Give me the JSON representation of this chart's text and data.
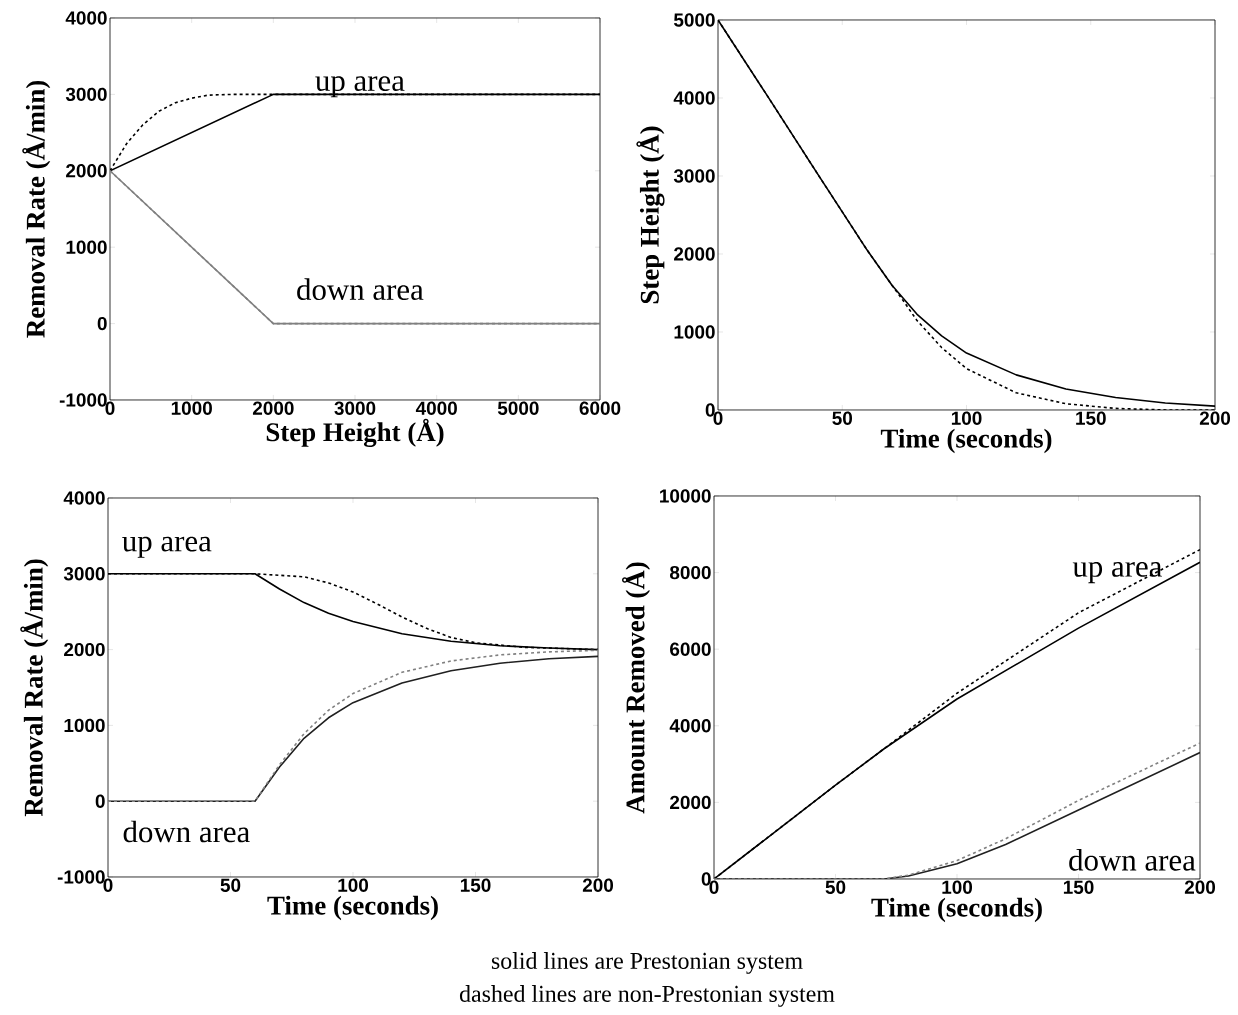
{
  "chart_data": [
    {
      "type": "line",
      "xlabel": "Step Height (Å)",
      "ylabel": "Removal Rate (Å/min)",
      "xlim": [
        0,
        6000
      ],
      "ylim": [
        -1000,
        4000
      ],
      "xticks": [
        0,
        1000,
        2000,
        3000,
        4000,
        5000,
        6000
      ],
      "yticks": [
        -1000,
        0,
        1000,
        2000,
        3000,
        4000
      ],
      "marker": "none",
      "series": [
        {
          "color": "#000000",
          "line_style": "solid",
          "x": [
            0,
            2000,
            6000
          ],
          "values": [
            2000,
            3000,
            3000
          ]
        },
        {
          "color": "#000000",
          "line_style": "dashed",
          "x": [
            0,
            200,
            400,
            600,
            800,
            1000,
            1200,
            1500,
            2000,
            6000
          ],
          "values": [
            2000,
            2350,
            2600,
            2780,
            2890,
            2950,
            2990,
            3000,
            3000,
            3000
          ]
        },
        {
          "color": "#808080",
          "line_style": "solid",
          "x": [
            0,
            2000,
            6000
          ],
          "values": [
            2000,
            0,
            0
          ]
        },
        {
          "color": "#808080",
          "line_style": "dashed",
          "x": [
            0,
            2000,
            6000
          ],
          "values": [
            2000,
            0,
            0
          ]
        }
      ],
      "annotations": [
        "up area",
        "down area"
      ]
    },
    {
      "type": "line",
      "xlabel": "Time (seconds)",
      "ylabel": "Step Height (Å)",
      "xlim": [
        0,
        200
      ],
      "ylim": [
        0,
        5000
      ],
      "xticks": [
        0,
        50,
        100,
        150,
        200
      ],
      "yticks": [
        0,
        1000,
        2000,
        3000,
        4000,
        5000
      ],
      "marker": "none",
      "series": [
        {
          "color": "#000000",
          "line_style": "solid",
          "x": [
            0,
            20,
            40,
            60,
            70,
            80,
            90,
            100,
            120,
            140,
            160,
            180,
            200
          ],
          "values": [
            5000,
            4020,
            3030,
            2050,
            1600,
            1230,
            950,
            730,
            450,
            270,
            160,
            90,
            50
          ]
        },
        {
          "color": "#000000",
          "line_style": "dashed",
          "x": [
            0,
            20,
            40,
            60,
            70,
            75,
            80,
            90,
            100,
            120,
            140,
            160,
            180,
            200
          ],
          "values": [
            5000,
            4020,
            3030,
            2050,
            1600,
            1380,
            1150,
            800,
            530,
            220,
            80,
            20,
            0,
            0
          ]
        }
      ]
    },
    {
      "type": "line",
      "xlabel": "Time (seconds)",
      "ylabel": "Removal Rate (Å/min)",
      "xlim": [
        0,
        200
      ],
      "ylim": [
        -1000,
        4000
      ],
      "xticks": [
        0,
        50,
        100,
        150,
        200
      ],
      "yticks": [
        -1000,
        0,
        1000,
        2000,
        3000,
        4000
      ],
      "marker": "none",
      "series": [
        {
          "color": "#000000",
          "line_style": "solid",
          "x": [
            0,
            60,
            70,
            80,
            90,
            100,
            120,
            140,
            160,
            180,
            200
          ],
          "values": [
            3000,
            3000,
            2800,
            2620,
            2480,
            2370,
            2210,
            2110,
            2050,
            2020,
            2000
          ]
        },
        {
          "color": "#000000",
          "line_style": "dashed",
          "x": [
            0,
            60,
            80,
            90,
            100,
            110,
            120,
            130,
            140,
            150,
            170,
            200
          ],
          "values": [
            3000,
            3000,
            2960,
            2880,
            2760,
            2600,
            2430,
            2280,
            2160,
            2090,
            2030,
            2000
          ]
        },
        {
          "color": "#202020",
          "line_style": "solid",
          "x": [
            0,
            60,
            70,
            80,
            90,
            100,
            120,
            140,
            160,
            180,
            200
          ],
          "values": [
            0,
            0,
            450,
            830,
            1100,
            1300,
            1560,
            1720,
            1820,
            1880,
            1910
          ]
        },
        {
          "color": "#808080",
          "line_style": "dashed",
          "x": [
            0,
            60,
            70,
            80,
            90,
            100,
            120,
            140,
            160,
            180,
            200
          ],
          "values": [
            0,
            0,
            480,
            890,
            1200,
            1420,
            1700,
            1850,
            1930,
            1970,
            1990
          ]
        }
      ],
      "annotations": [
        "up area",
        "down area"
      ]
    },
    {
      "type": "line",
      "xlabel": "Time (seconds)",
      "ylabel": "Amount Removed (Å)",
      "xlim": [
        0,
        200
      ],
      "ylim": [
        0,
        10000
      ],
      "xticks": [
        0,
        50,
        100,
        150,
        200
      ],
      "yticks": [
        0,
        2000,
        4000,
        6000,
        8000,
        10000
      ],
      "marker": "none",
      "series": [
        {
          "color": "#000000",
          "line_style": "solid",
          "x": [
            0,
            50,
            70,
            100,
            150,
            200
          ],
          "values": [
            0,
            2450,
            3400,
            4700,
            6550,
            8270
          ]
        },
        {
          "color": "#000000",
          "line_style": "dashed",
          "x": [
            0,
            50,
            70,
            100,
            150,
            200
          ],
          "values": [
            0,
            2450,
            3400,
            4850,
            6950,
            8600
          ]
        },
        {
          "color": "#202020",
          "line_style": "solid",
          "x": [
            0,
            70,
            80,
            100,
            120,
            150,
            200
          ],
          "values": [
            0,
            0,
            80,
            400,
            900,
            1800,
            3300
          ]
        },
        {
          "color": "#808080",
          "line_style": "dashed",
          "x": [
            0,
            70,
            80,
            100,
            120,
            150,
            200
          ],
          "values": [
            0,
            0,
            100,
            480,
            1050,
            2050,
            3550
          ]
        }
      ],
      "annotations": [
        "up area",
        "down area",
        "solid lines are Prestonian system",
        "dashed lines are non-Prestonian system"
      ]
    }
  ]
}
